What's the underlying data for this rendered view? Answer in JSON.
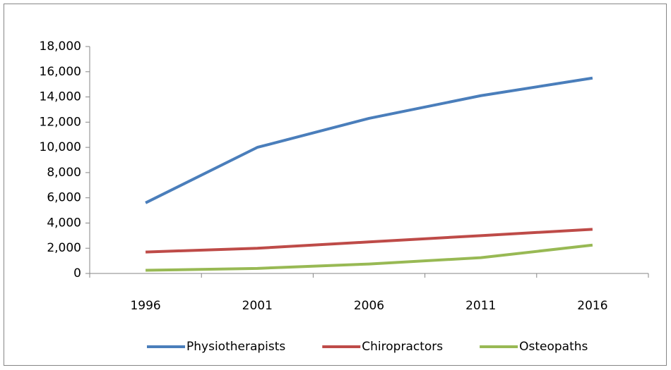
{
  "chart_data": {
    "type": "line",
    "categories": [
      "1996",
      "2001",
      "2006",
      "2011",
      "2016"
    ],
    "series": [
      {
        "name": "Physiotherapists",
        "color": "#4a7ebb",
        "values": [
          5600,
          10000,
          12300,
          14100,
          15500
        ]
      },
      {
        "name": "Chiropractors",
        "color": "#be4b48",
        "values": [
          1700,
          2000,
          2500,
          3000,
          3500
        ]
      },
      {
        "name": "Osteopaths",
        "color": "#98b954",
        "values": [
          250,
          400,
          750,
          1250,
          2250
        ]
      }
    ],
    "ylim": [
      0,
      18000
    ],
    "yticks": [
      0,
      {
        "value": 2000,
        "label": "2,000"
      },
      {
        "value": 4000,
        "label": "4,000"
      },
      {
        "value": 6000,
        "label": "6,000"
      },
      {
        "value": 8000,
        "label": "8,000"
      },
      {
        "value": 10000,
        "label": "10,000"
      },
      {
        "value": 12000,
        "label": "12,000"
      },
      {
        "value": 14000,
        "label": "14,000"
      },
      {
        "value": 16000,
        "label": "16,000"
      },
      {
        "value": 18000,
        "label": "18,000"
      }
    ],
    "grid": false,
    "legend": "bottom"
  }
}
